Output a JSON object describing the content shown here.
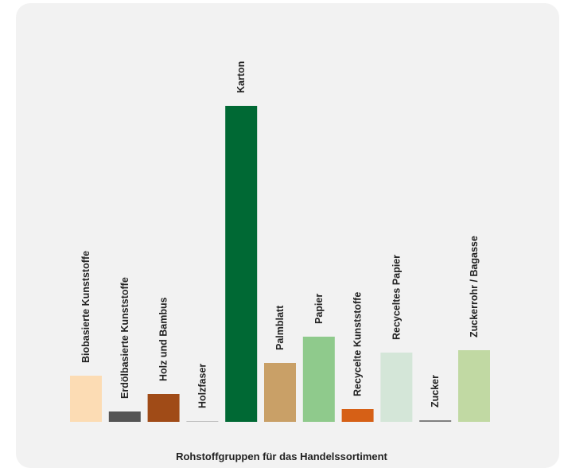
{
  "chart_data": {
    "type": "bar",
    "xlabel": "Rohstoffgruppen für das Handelssortiment",
    "ylabel": "",
    "grid": false,
    "categories": [
      "Biobasierte Kunststoffe",
      "Erdölbasierte Kunststoffe",
      "Holz und Bambus",
      "Holzfaser",
      "Karton",
      "Palmblatt",
      "Papier",
      "Recycelte Kunststoffe",
      "Recyceltes Papier",
      "Zucker",
      "Zuckerrohr / Bagasse"
    ],
    "values": [
      58,
      13,
      35,
      1,
      397,
      74,
      107,
      16,
      87,
      2,
      90
    ],
    "colors": [
      "#fcdcb4",
      "#545454",
      "#a04b17",
      "#c0c0c0",
      "#006934",
      "#c9a067",
      "#8fca8c",
      "#d66016",
      "#d4e6d8",
      "#808080",
      "#c1d9a3"
    ]
  }
}
